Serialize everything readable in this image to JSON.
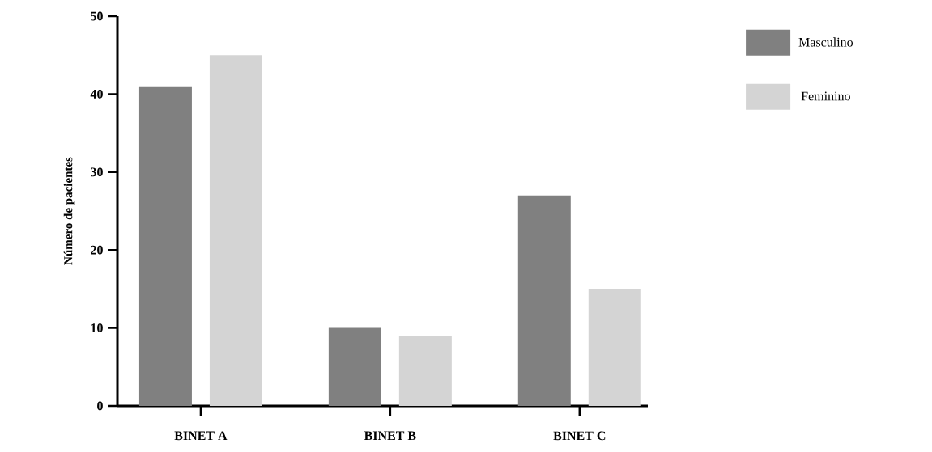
{
  "chart_data": {
    "type": "bar",
    "ylabel": "Número de pacientes",
    "categories": [
      "BINET A",
      "BINET B",
      "BINET C"
    ],
    "series": [
      {
        "name": "Masculino",
        "color": "#808080",
        "values": [
          41,
          10,
          27
        ]
      },
      {
        "name": "Feminino",
        "color": "#d4d4d4",
        "values": [
          45,
          9,
          15
        ]
      }
    ],
    "ylim": [
      0,
      50
    ],
    "yticks": [
      0,
      10,
      20,
      30,
      40,
      50
    ],
    "legend": "top right",
    "grid": false
  }
}
